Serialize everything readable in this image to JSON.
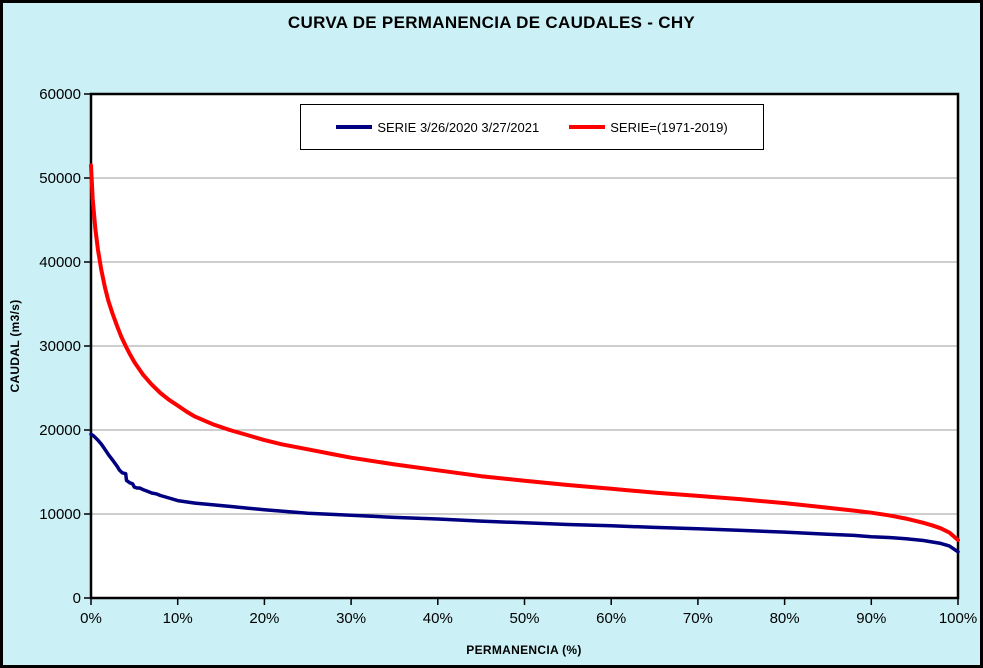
{
  "page": {
    "background_color": "#CBF1F6",
    "frame_border_color": "#000000"
  },
  "chart_data": {
    "type": "line",
    "title": "CURVA DE PERMANENCIA DE CAUDALES - CHY",
    "xlabel": "PERMANENCIA (%)",
    "ylabel": "CAUDAL (m3/s)",
    "xlim": [
      0,
      100
    ],
    "ylim": [
      0,
      60000
    ],
    "grid": "horizontal",
    "gridline_color": "#9E9E9E",
    "plot_background": "#FFFFFF",
    "axis_color": "#000000",
    "legend_position": "top-center-inside",
    "x_tick_values": [
      0,
      10,
      20,
      30,
      40,
      50,
      60,
      70,
      80,
      90,
      100
    ],
    "x_tick_labels": [
      "0%",
      "10%",
      "20%",
      "30%",
      "40%",
      "50%",
      "60%",
      "70%",
      "80%",
      "90%",
      "100%"
    ],
    "y_tick_values": [
      0,
      10000,
      20000,
      30000,
      40000,
      50000,
      60000
    ],
    "y_tick_labels": [
      "0",
      "10000",
      "20000",
      "30000",
      "40000",
      "50000",
      "60000"
    ],
    "series": [
      {
        "name": "SERIE 3/26/2020 3/27/2021",
        "color": "#000080",
        "width": 3.5,
        "x": [
          0,
          0.3,
          0.8,
          1.2,
          1.6,
          2,
          2.5,
          3,
          3.3,
          3.6,
          4,
          4.1,
          4.5,
          4.8,
          5,
          5.3,
          5.6,
          6,
          6.5,
          7,
          7.5,
          8,
          9,
          10,
          12,
          14,
          16,
          18,
          20,
          25,
          30,
          35,
          40,
          45,
          50,
          55,
          60,
          65,
          70,
          75,
          80,
          85,
          88,
          90,
          92,
          94,
          96,
          98,
          99,
          100
        ],
        "y": [
          19500,
          19300,
          18800,
          18300,
          17700,
          17100,
          16400,
          15700,
          15200,
          14900,
          14800,
          14000,
          13700,
          13600,
          13200,
          13100,
          13100,
          12900,
          12700,
          12500,
          12400,
          12200,
          11900,
          11600,
          11300,
          11100,
          10900,
          10700,
          10500,
          10100,
          9850,
          9600,
          9400,
          9150,
          8950,
          8750,
          8600,
          8400,
          8250,
          8050,
          7850,
          7600,
          7450,
          7300,
          7200,
          7050,
          6850,
          6500,
          6200,
          5500
        ]
      },
      {
        "name": "SERIE=(1971-2019)",
        "color": "#FF0000",
        "width": 4,
        "x": [
          0,
          0.2,
          0.5,
          0.8,
          1.2,
          1.6,
          2,
          2.5,
          3,
          3.5,
          4,
          4.5,
          5,
          6,
          7,
          8,
          9,
          10,
          11,
          12,
          14,
          16,
          18,
          20,
          22,
          25,
          28,
          30,
          35,
          40,
          45,
          50,
          55,
          60,
          65,
          70,
          75,
          80,
          85,
          88,
          90,
          92,
          94,
          96,
          97,
          98,
          99,
          100
        ],
        "y": [
          51500,
          47500,
          44000,
          41500,
          39000,
          37000,
          35400,
          33800,
          32400,
          31100,
          30000,
          29000,
          28100,
          26600,
          25400,
          24400,
          23600,
          22900,
          22200,
          21600,
          20700,
          20000,
          19400,
          18800,
          18300,
          17700,
          17100,
          16700,
          15900,
          15200,
          14500,
          13950,
          13450,
          13000,
          12550,
          12150,
          11750,
          11300,
          10750,
          10400,
          10150,
          9850,
          9450,
          8950,
          8650,
          8300,
          7800,
          6900
        ]
      }
    ]
  }
}
